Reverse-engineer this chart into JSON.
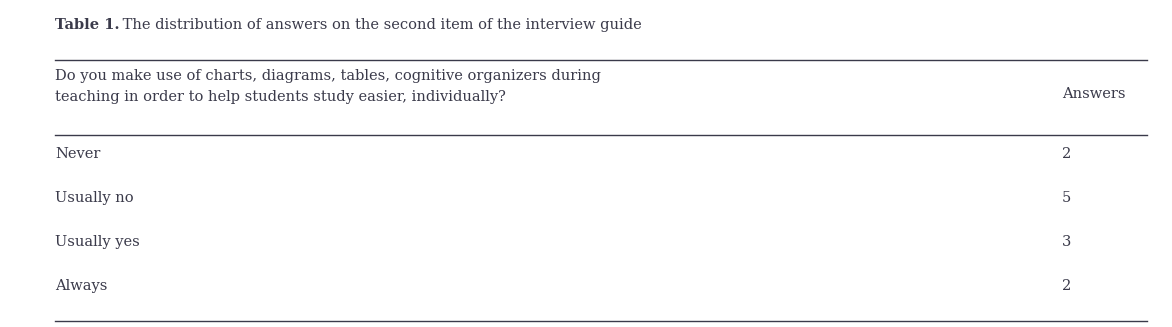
{
  "title_bold": "Table 1.",
  "title_regular": " The distribution of answers on the second item of the interview guide",
  "header_col1": "Do you make use of charts, diagrams, tables, cognitive organizers during\nteaching in order to help students study easier, individually?",
  "header_col2": "Answers",
  "rows": [
    [
      "Never",
      "2"
    ],
    [
      "Usually no",
      "5"
    ],
    [
      "Usually yes",
      "3"
    ],
    [
      "Always",
      "2"
    ]
  ],
  "bg_color": "#ffffff",
  "text_color": "#3a3a4a",
  "line_color": "#3a3a4a",
  "font_size": 10.5,
  "title_font_size": 10.5,
  "fig_width": 11.72,
  "fig_height": 3.27,
  "dpi": 100
}
